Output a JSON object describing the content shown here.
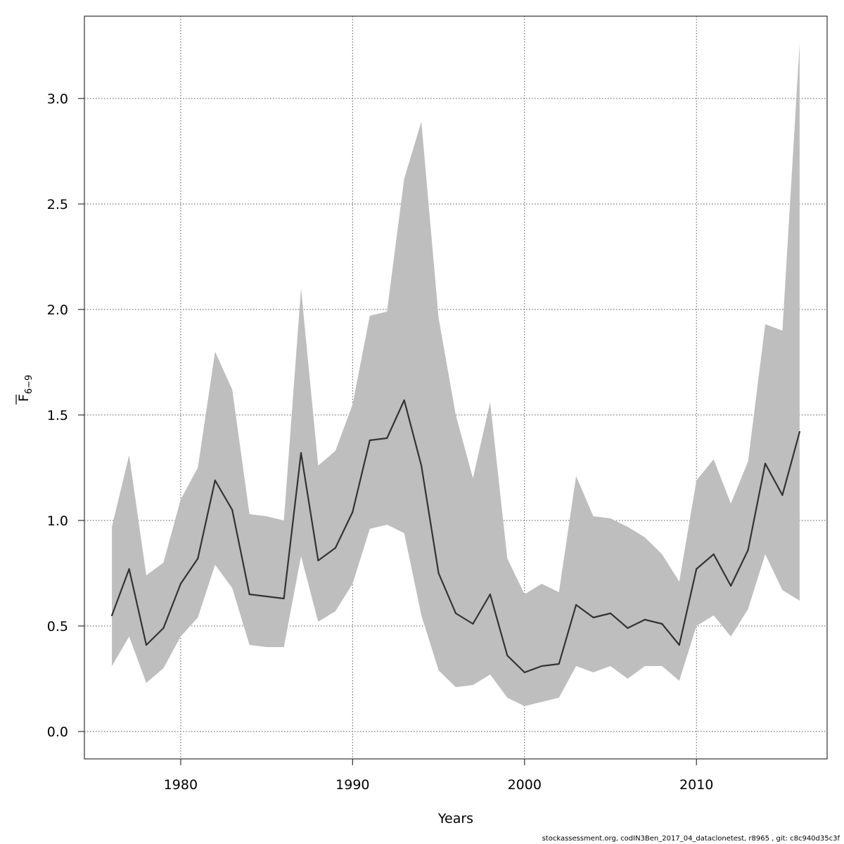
{
  "chart_data": {
    "type": "line",
    "xlabel": "Years",
    "ylabel_main": "F",
    "ylabel_sub": "6−9",
    "xlim": [
      1974.4,
      2017.6
    ],
    "ylim": [
      -0.13,
      3.39
    ],
    "xticks": [
      1980,
      1990,
      2000,
      2010
    ],
    "yticks": [
      0.0,
      0.5,
      1.0,
      1.5,
      2.0,
      2.5,
      3.0
    ],
    "ytick_labels": [
      "0.0",
      "0.5",
      "1.0",
      "1.5",
      "2.0",
      "2.5",
      "3.0"
    ],
    "grid": true,
    "x": [
      1976,
      1977,
      1978,
      1979,
      1980,
      1981,
      1982,
      1983,
      1984,
      1985,
      1986,
      1987,
      1988,
      1989,
      1990,
      1991,
      1992,
      1993,
      1994,
      1995,
      1996,
      1997,
      1998,
      1999,
      2000,
      2001,
      2002,
      2003,
      2004,
      2005,
      2006,
      2007,
      2008,
      2009,
      2010,
      2011,
      2012,
      2013,
      2014,
      2015,
      2016
    ],
    "series": [
      {
        "role": "estimate",
        "color": "#333333",
        "values": [
          0.55,
          0.77,
          0.41,
          0.49,
          0.7,
          0.82,
          1.19,
          1.05,
          0.65,
          0.64,
          0.63,
          1.32,
          0.81,
          0.87,
          1.04,
          1.38,
          1.39,
          1.57,
          1.26,
          0.75,
          0.56,
          0.51,
          0.65,
          0.36,
          0.28,
          0.31,
          0.32,
          0.6,
          0.54,
          0.56,
          0.49,
          0.53,
          0.51,
          0.41,
          0.77,
          0.84,
          0.69,
          0.86,
          1.27,
          1.12,
          1.42
        ]
      }
    ],
    "band": {
      "color": "#bebebe",
      "lower": [
        0.31,
        0.45,
        0.23,
        0.3,
        0.45,
        0.54,
        0.79,
        0.68,
        0.41,
        0.4,
        0.4,
        0.83,
        0.52,
        0.57,
        0.7,
        0.96,
        0.98,
        0.94,
        0.55,
        0.29,
        0.21,
        0.22,
        0.27,
        0.16,
        0.12,
        0.14,
        0.16,
        0.31,
        0.28,
        0.31,
        0.25,
        0.31,
        0.31,
        0.24,
        0.5,
        0.55,
        0.45,
        0.58,
        0.84,
        0.67,
        0.62
      ],
      "upper": [
        0.97,
        1.31,
        0.74,
        0.8,
        1.1,
        1.25,
        1.8,
        1.62,
        1.03,
        1.02,
        1.0,
        2.1,
        1.26,
        1.33,
        1.55,
        1.97,
        1.99,
        2.62,
        2.89,
        1.96,
        1.5,
        1.2,
        1.56,
        0.82,
        0.65,
        0.7,
        0.66,
        1.21,
        1.02,
        1.01,
        0.97,
        0.92,
        0.84,
        0.71,
        1.19,
        1.29,
        1.08,
        1.28,
        1.93,
        1.9,
        3.26
      ]
    }
  },
  "footer": "stockassessment.org, codIN3Ben_2017_04_dataclonetest, r8965 , git: c8c940d35c3f"
}
